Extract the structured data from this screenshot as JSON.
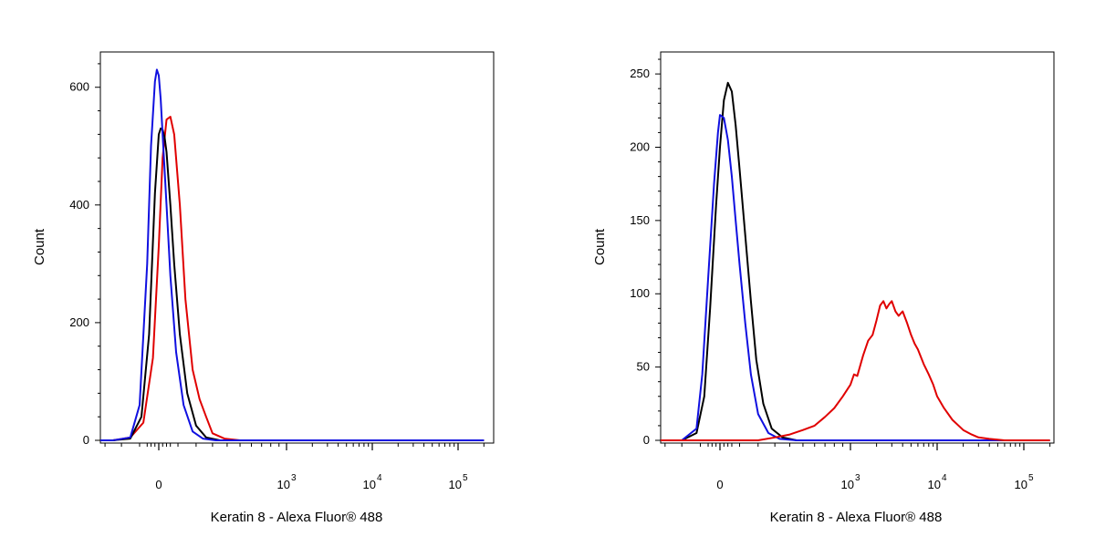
{
  "chart_data": [
    {
      "type": "line",
      "xlabel": "Keratin 8 - Alexa Fluor® 488",
      "ylabel": "Count",
      "x_scale": "biexponential",
      "x_ticks": [
        {
          "value": 0,
          "base": "0",
          "exp": ""
        },
        {
          "value": 1000,
          "base": "10",
          "exp": "3"
        },
        {
          "value": 10000,
          "base": "10",
          "exp": "4"
        },
        {
          "value": 100000,
          "base": "10",
          "exp": "5"
        }
      ],
      "y_ticks": [
        0,
        200,
        400,
        600
      ],
      "ylim": [
        0,
        660
      ],
      "series": [
        {
          "color": "#e00000",
          "x": [
            -400,
            -250,
            -150,
            -80,
            -30,
            0,
            20,
            40,
            60,
            80,
            110,
            140,
            180,
            220,
            260,
            300,
            380,
            500,
            700,
            1000,
            3000,
            10000,
            100000,
            200000
          ],
          "y": [
            0,
            0,
            5,
            30,
            140,
            330,
            480,
            545,
            550,
            520,
            400,
            240,
            120,
            70,
            40,
            12,
            3,
            0,
            0,
            0,
            0,
            0,
            0,
            0
          ]
        },
        {
          "color": "#000000",
          "x": [
            -400,
            -250,
            -150,
            -90,
            -50,
            -20,
            0,
            10,
            20,
            30,
            40,
            60,
            80,
            110,
            150,
            200,
            260,
            350,
            500,
            1000,
            100000,
            200000
          ],
          "y": [
            0,
            0,
            3,
            40,
            180,
            420,
            520,
            530,
            528,
            515,
            490,
            400,
            300,
            180,
            80,
            25,
            5,
            0,
            0,
            0,
            0,
            0
          ]
        },
        {
          "color": "#1010e0",
          "x": [
            -400,
            -250,
            -150,
            -100,
            -60,
            -40,
            -20,
            -10,
            0,
            10,
            20,
            40,
            60,
            90,
            130,
            180,
            240,
            320,
            500,
            1000,
            100000,
            200000
          ],
          "y": [
            0,
            0,
            5,
            60,
            300,
            500,
            610,
            630,
            620,
            580,
            520,
            400,
            280,
            150,
            60,
            15,
            3,
            0,
            0,
            0,
            0,
            0
          ]
        }
      ]
    },
    {
      "type": "line",
      "xlabel": "Keratin 8 - Alexa Fluor® 488",
      "ylabel": "Count",
      "x_scale": "biexponential",
      "x_ticks": [
        {
          "value": 0,
          "base": "0",
          "exp": ""
        },
        {
          "value": 1000,
          "base": "10",
          "exp": "3"
        },
        {
          "value": 10000,
          "base": "10",
          "exp": "4"
        },
        {
          "value": 100000,
          "base": "10",
          "exp": "5"
        }
      ],
      "y_ticks": [
        0,
        50,
        100,
        150,
        200,
        250
      ],
      "ylim": [
        0,
        265
      ],
      "series": [
        {
          "color": "#000000",
          "x": [
            -400,
            -200,
            -120,
            -80,
            -50,
            -20,
            0,
            20,
            40,
            60,
            80,
            100,
            130,
            160,
            190,
            230,
            280,
            350,
            450,
            1000,
            100000,
            200000
          ],
          "y": [
            0,
            0,
            5,
            30,
            90,
            160,
            200,
            232,
            244,
            238,
            215,
            185,
            140,
            95,
            55,
            25,
            8,
            2,
            0,
            0,
            0,
            0
          ]
        },
        {
          "color": "#1010e0",
          "x": [
            -400,
            -200,
            -120,
            -90,
            -60,
            -30,
            -10,
            0,
            20,
            40,
            60,
            80,
            100,
            130,
            160,
            200,
            260,
            330,
            450,
            1000,
            100000,
            200000
          ],
          "y": [
            0,
            0,
            8,
            45,
            110,
            175,
            210,
            222,
            220,
            205,
            180,
            150,
            120,
            80,
            45,
            18,
            5,
            1,
            0,
            0,
            0,
            0
          ]
        },
        {
          "color": "#e00000",
          "x": [
            -400,
            0,
            200,
            300,
            400,
            500,
            600,
            700,
            800,
            900,
            1000,
            1100,
            1200,
            1400,
            1600,
            1800,
            2000,
            2200,
            2400,
            2600,
            2800,
            3000,
            3300,
            3600,
            4000,
            4500,
            5000,
            5500,
            6000,
            7000,
            8000,
            9000,
            10000,
            12000,
            15000,
            20000,
            25000,
            30000,
            40000,
            60000,
            100000,
            200000
          ],
          "y": [
            0,
            0,
            0,
            2,
            4,
            7,
            10,
            16,
            22,
            30,
            38,
            45,
            44,
            58,
            68,
            72,
            82,
            92,
            95,
            90,
            93,
            95,
            88,
            85,
            88,
            80,
            72,
            66,
            62,
            52,
            45,
            38,
            30,
            22,
            14,
            7,
            4,
            2,
            1,
            0,
            0,
            0
          ]
        }
      ]
    }
  ]
}
